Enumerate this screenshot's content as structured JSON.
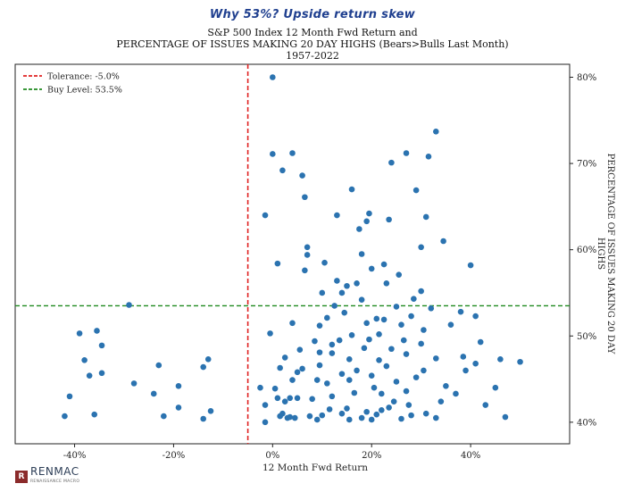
{
  "header": {
    "heading": "Why 53%? Upside return skew"
  },
  "branding": {
    "logo_text": "RENMAC",
    "logo_subtext": "RENAISSANCE MACRO",
    "logo_mark": "R"
  },
  "chart_data": {
    "type": "scatter",
    "title": [
      "S&P 500 Index 12 Month Fwd Return and",
      "PERCENTAGE OF ISSUES MAKING 20 DAY HIGHS (Bears>Bulls Last Month)",
      "1957-2022"
    ],
    "xlabel": "12 Month Fwd Return",
    "ylabel": "PERCENTAGE OF ISSUES MAKING 20 DAY HIGHS",
    "xlim": [
      -0.52,
      0.6
    ],
    "ylim": [
      37.5,
      81.5
    ],
    "xticks": [
      -0.4,
      -0.2,
      0.0,
      0.2,
      0.4
    ],
    "xtick_labels": [
      "-40%",
      "-20%",
      "0%",
      "20%",
      "40%"
    ],
    "yticks": [
      40,
      50,
      60,
      70,
      80
    ],
    "ytick_labels": [
      "40%",
      "50%",
      "60%",
      "70%",
      "80%"
    ],
    "y_axis_position": "right",
    "grid": false,
    "legend": {
      "position": "top-left",
      "entries": [
        {
          "label": "Tolerance: -5.0%",
          "color": "#e02020",
          "style": "dashed"
        },
        {
          "label": "Buy Level: 53.5%",
          "color": "#1f8a1f",
          "style": "dashed"
        }
      ]
    },
    "reference_lines": [
      {
        "orientation": "vertical",
        "value": -0.05,
        "color": "#e02020"
      },
      {
        "orientation": "horizontal",
        "value": 53.5,
        "color": "#1f8a1f"
      }
    ],
    "marker_color": "#2b73b0",
    "points": [
      [
        -0.42,
        40.7
      ],
      [
        -0.41,
        43.0
      ],
      [
        -0.39,
        50.3
      ],
      [
        -0.38,
        47.2
      ],
      [
        -0.37,
        45.4
      ],
      [
        -0.36,
        40.9
      ],
      [
        -0.355,
        50.6
      ],
      [
        -0.345,
        48.9
      ],
      [
        -0.345,
        45.7
      ],
      [
        -0.29,
        53.6
      ],
      [
        -0.28,
        44.5
      ],
      [
        -0.24,
        43.3
      ],
      [
        -0.23,
        46.6
      ],
      [
        -0.22,
        40.7
      ],
      [
        -0.19,
        44.2
      ],
      [
        -0.19,
        41.7
      ],
      [
        -0.14,
        46.4
      ],
      [
        -0.14,
        40.4
      ],
      [
        -0.13,
        47.3
      ],
      [
        -0.125,
        41.3
      ],
      [
        0.0,
        80.0
      ],
      [
        0.0,
        71.1
      ],
      [
        0.01,
        58.4
      ],
      [
        0.015,
        46.3
      ],
      [
        0.02,
        69.2
      ],
      [
        0.025,
        47.5
      ],
      [
        0.04,
        71.2
      ],
      [
        0.05,
        45.8
      ],
      [
        0.06,
        68.6
      ],
      [
        0.065,
        66.1
      ],
      [
        -0.015,
        40.0
      ],
      [
        -0.025,
        44.0
      ],
      [
        -0.015,
        64.0
      ],
      [
        -0.005,
        50.3
      ],
      [
        -0.015,
        42.0
      ],
      [
        0.005,
        43.9
      ],
      [
        0.01,
        42.8
      ],
      [
        0.015,
        40.7
      ],
      [
        0.02,
        41.0
      ],
      [
        0.025,
        42.4
      ],
      [
        0.03,
        40.5
      ],
      [
        0.035,
        40.6
      ],
      [
        0.035,
        42.8
      ],
      [
        0.04,
        44.9
      ],
      [
        0.04,
        51.5
      ],
      [
        0.045,
        40.5
      ],
      [
        0.05,
        42.8
      ],
      [
        0.055,
        48.4
      ],
      [
        0.06,
        46.2
      ],
      [
        0.065,
        57.6
      ],
      [
        0.07,
        60.3
      ],
      [
        0.07,
        59.4
      ],
      [
        0.075,
        40.7
      ],
      [
        0.08,
        42.7
      ],
      [
        0.085,
        49.4
      ],
      [
        0.09,
        44.9
      ],
      [
        0.09,
        40.3
      ],
      [
        0.095,
        51.2
      ],
      [
        0.095,
        46.6
      ],
      [
        0.1,
        55.0
      ],
      [
        0.1,
        40.8
      ],
      [
        0.105,
        58.5
      ],
      [
        0.11,
        52.1
      ],
      [
        0.11,
        44.5
      ],
      [
        0.115,
        41.5
      ],
      [
        0.12,
        48.0
      ],
      [
        0.12,
        43.0
      ],
      [
        0.125,
        53.5
      ],
      [
        0.13,
        56.4
      ],
      [
        0.13,
        64.0
      ],
      [
        0.135,
        49.5
      ],
      [
        0.14,
        41.0
      ],
      [
        0.14,
        45.6
      ],
      [
        0.145,
        52.7
      ],
      [
        0.15,
        55.8
      ],
      [
        0.15,
        41.6
      ],
      [
        0.155,
        47.3
      ],
      [
        0.155,
        40.3
      ],
      [
        0.16,
        67.0
      ],
      [
        0.16,
        50.1
      ],
      [
        0.165,
        43.4
      ],
      [
        0.17,
        56.1
      ],
      [
        0.17,
        46.0
      ],
      [
        0.175,
        62.4
      ],
      [
        0.18,
        54.2
      ],
      [
        0.18,
        40.5
      ],
      [
        0.185,
        48.6
      ],
      [
        0.19,
        63.3
      ],
      [
        0.19,
        51.5
      ],
      [
        0.19,
        41.2
      ],
      [
        0.195,
        64.2
      ],
      [
        0.2,
        57.8
      ],
      [
        0.2,
        45.4
      ],
      [
        0.2,
        40.3
      ],
      [
        0.205,
        44.0
      ],
      [
        0.21,
        52.0
      ],
      [
        0.21,
        40.9
      ],
      [
        0.215,
        50.2
      ],
      [
        0.22,
        43.3
      ],
      [
        0.22,
        41.4
      ],
      [
        0.225,
        58.3
      ],
      [
        0.23,
        56.1
      ],
      [
        0.23,
        46.5
      ],
      [
        0.235,
        41.7
      ],
      [
        0.24,
        70.1
      ],
      [
        0.24,
        48.5
      ],
      [
        0.245,
        42.4
      ],
      [
        0.25,
        53.4
      ],
      [
        0.25,
        44.7
      ],
      [
        0.26,
        51.3
      ],
      [
        0.26,
        40.4
      ],
      [
        0.27,
        71.2
      ],
      [
        0.27,
        47.9
      ],
      [
        0.275,
        42.0
      ],
      [
        0.28,
        52.3
      ],
      [
        0.28,
        40.8
      ],
      [
        0.29,
        66.9
      ],
      [
        0.29,
        45.2
      ],
      [
        0.3,
        60.3
      ],
      [
        0.3,
        55.2
      ],
      [
        0.31,
        63.8
      ],
      [
        0.31,
        41.0
      ],
      [
        0.315,
        70.8
      ],
      [
        0.32,
        53.2
      ],
      [
        0.33,
        73.7
      ],
      [
        0.33,
        47.4
      ],
      [
        0.34,
        42.4
      ],
      [
        0.35,
        44.2
      ],
      [
        0.36,
        51.3
      ],
      [
        0.37,
        43.3
      ],
      [
        0.38,
        52.8
      ],
      [
        0.385,
        47.6
      ],
      [
        0.39,
        46.0
      ],
      [
        0.4,
        58.2
      ],
      [
        0.41,
        52.3
      ],
      [
        0.41,
        46.8
      ],
      [
        0.42,
        49.3
      ],
      [
        0.43,
        42.0
      ],
      [
        0.45,
        44.0
      ],
      [
        0.46,
        47.3
      ],
      [
        0.47,
        40.6
      ],
      [
        0.5,
        47.0
      ],
      [
        0.235,
        63.5
      ],
      [
        0.285,
        54.3
      ],
      [
        0.305,
        50.7
      ],
      [
        0.345,
        61.0
      ],
      [
        0.305,
        46.0
      ],
      [
        0.18,
        59.5
      ],
      [
        0.14,
        55.0
      ],
      [
        0.12,
        49.0
      ],
      [
        0.255,
        57.1
      ],
      [
        0.195,
        49.6
      ],
      [
        0.215,
        47.2
      ],
      [
        0.225,
        51.9
      ],
      [
        0.33,
        40.5
      ],
      [
        0.3,
        49.1
      ],
      [
        0.27,
        43.6
      ],
      [
        0.265,
        49.5
      ],
      [
        0.095,
        48.1
      ],
      [
        0.155,
        44.9
      ]
    ]
  }
}
